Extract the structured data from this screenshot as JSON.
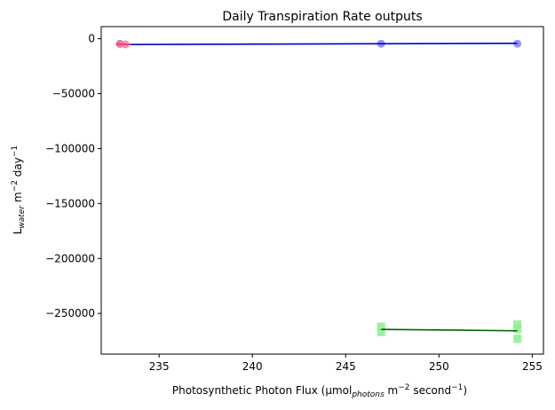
{
  "chart_data": {
    "type": "scatter",
    "title": "Daily Transpiration Rate outputs",
    "xlabel": {
      "prefix": "Photosynthetic Photon Flux (μmol",
      "sub": "photons",
      "mid": " m",
      "sup1": "−2",
      "mid2": " second",
      "sup2": "−1",
      "suffix": ")"
    },
    "ylabel": {
      "prefix": "L",
      "sub": "water",
      "mid": " m",
      "sup1": "−2",
      "mid2": " day",
      "sup2": "−1"
    },
    "xlim": [
      231.9,
      255.6
    ],
    "ylim": [
      -287000,
      11000
    ],
    "x_ticks": [
      235,
      240,
      245,
      250,
      255
    ],
    "y_ticks": [
      0,
      -50000,
      -100000,
      -150000,
      -200000,
      -250000
    ],
    "grid": false,
    "legend": "none",
    "series": [
      {
        "marker": "circle",
        "color": "#8080ff",
        "line_color": "#0000cc",
        "points": [
          [
            232.9,
            -4500
          ],
          [
            246.9,
            -4500
          ],
          [
            254.2,
            -4500
          ]
        ],
        "fit": [
          [
            232.9,
            -5300
          ],
          [
            254.2,
            -4200
          ]
        ]
      },
      {
        "marker": "circle",
        "color": "#f07fa0",
        "line_color": "#ff3366",
        "points": [
          [
            232.9,
            -4800
          ],
          [
            233.2,
            -5200
          ]
        ],
        "fit": [
          [
            232.7,
            -4900
          ],
          [
            233.5,
            -5100
          ]
        ]
      },
      {
        "marker": "square",
        "color": "#90ee90",
        "line_color": "#006400",
        "points": [
          [
            246.9,
            -262000
          ],
          [
            246.9,
            -267000
          ],
          [
            254.2,
            -260000
          ],
          [
            254.2,
            -264000
          ],
          [
            254.2,
            -273000
          ]
        ],
        "fit": [
          [
            246.9,
            -264500
          ],
          [
            254.2,
            -265800
          ]
        ]
      }
    ]
  }
}
